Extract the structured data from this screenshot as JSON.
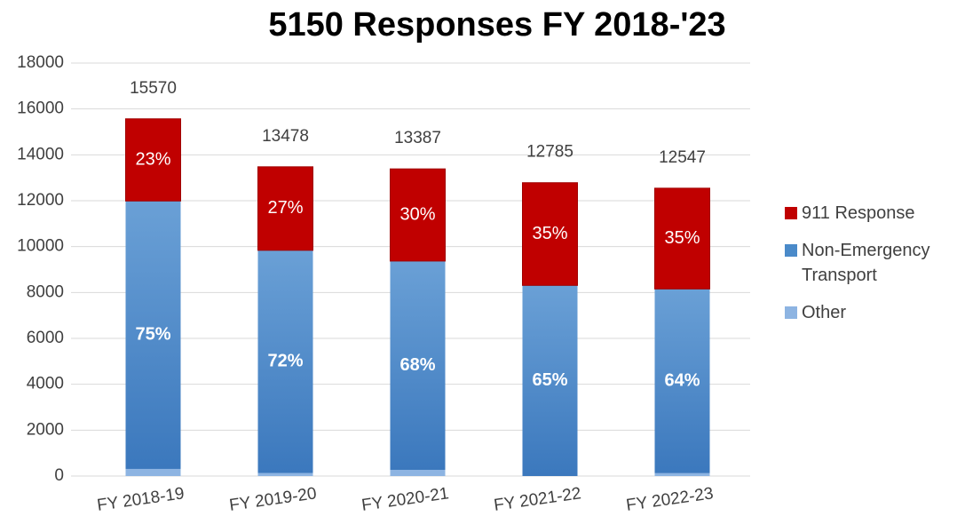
{
  "chart_data": {
    "type": "stacked_bar",
    "title": "5150 Responses FY 2018-'23",
    "categories": [
      "FY 2018-19",
      "FY 2019-20",
      "FY 2020-21",
      "FY 2021-22",
      "FY 2022-23"
    ],
    "series": [
      {
        "name": "Other",
        "color": "#8db4e2",
        "values": [
          311,
          135,
          268,
          0,
          125
        ]
      },
      {
        "name": "Non-Emergency Transport",
        "color": "#4a8ac9",
        "values": [
          11678,
          9704,
          9103,
          8310,
          8030
        ],
        "labels": [
          "75%",
          "72%",
          "68%",
          "65%",
          "64%"
        ]
      },
      {
        "name": "911 Response",
        "color": "#c00000",
        "values": [
          3581,
          3639,
          4016,
          4475,
          4391
        ],
        "labels": [
          "23%",
          "27%",
          "30%",
          "35%",
          "35%"
        ]
      }
    ],
    "totals": [
      15570,
      13478,
      13387,
      12785,
      12547
    ],
    "ylim": [
      0,
      18000
    ],
    "yticks": [
      0,
      2000,
      4000,
      6000,
      8000,
      10000,
      12000,
      14000,
      16000,
      18000
    ],
    "grid": true,
    "legend": "right"
  }
}
